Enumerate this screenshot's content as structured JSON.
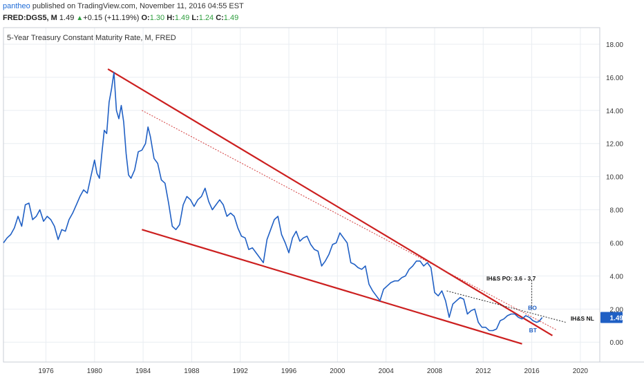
{
  "header": {
    "author": "pantheo",
    "published_text": "published on TradingView.com, November 11, 2016 04:55 EST",
    "symbol": "FRED:DGS5, M",
    "last": "1.49",
    "change_arrow": "▲",
    "change": "+0.15 (+11.19%)",
    "open_label": "O:",
    "open": "1.30",
    "high_label": "H:",
    "high": "1.49",
    "low_label": "L:",
    "low": "1.24",
    "close_label": "C:",
    "close": "1.49"
  },
  "colors": {
    "series": "#1f5fc4",
    "trendline": "#cc1f1f",
    "dotted_red": "#d23a3a",
    "dotted_black": "#222222",
    "price_tag": "#1f5fc4",
    "grid": "#e9edf2"
  },
  "chart_data": {
    "type": "line",
    "title": "5-Year Treasury Constant Maturity Rate, M, FRED",
    "x_ticks": [
      "1976",
      "1980",
      "1984",
      "1988",
      "1992",
      "1996",
      "2000",
      "2004",
      "2008",
      "2012",
      "2016",
      "2020"
    ],
    "y_ticks": [
      "0.00",
      "2.00",
      "4.00",
      "6.00",
      "8.00",
      "10.00",
      "12.00",
      "14.00",
      "16.00",
      "18.00"
    ],
    "xlim": [
      1972.5,
      2021.6
    ],
    "ylim": [
      -1.2,
      19.0
    ],
    "grid": true,
    "last_value_label": "1.49",
    "series": [
      {
        "x": [
          1972.5,
          1972.8,
          1973.1,
          1973.4,
          1973.7,
          1974.0,
          1974.3,
          1974.6,
          1974.9,
          1975.2,
          1975.5,
          1975.8,
          1976.1,
          1976.4,
          1976.7,
          1977.0,
          1977.3,
          1977.6,
          1977.9,
          1978.2,
          1978.5,
          1978.8,
          1979.1,
          1979.4,
          1979.7,
          1980.0,
          1980.2,
          1980.4,
          1980.6,
          1980.8,
          1981.0,
          1981.2,
          1981.4,
          1981.6,
          1981.8,
          1982.0,
          1982.2,
          1982.4,
          1982.6,
          1982.8,
          1983.0,
          1983.3,
          1983.6,
          1983.9,
          1984.2,
          1984.4,
          1984.6,
          1984.9,
          1985.2,
          1985.5,
          1985.8,
          1986.1,
          1986.4,
          1986.7,
          1987.0,
          1987.3,
          1987.6,
          1987.9,
          1988.2,
          1988.5,
          1988.8,
          1989.1,
          1989.4,
          1989.7,
          1990.0,
          1990.3,
          1990.6,
          1990.9,
          1991.2,
          1991.5,
          1991.8,
          1992.1,
          1992.4,
          1992.7,
          1993.0,
          1993.3,
          1993.6,
          1993.9,
          1994.2,
          1994.5,
          1994.8,
          1995.1,
          1995.4,
          1995.7,
          1996.0,
          1996.3,
          1996.6,
          1996.9,
          1997.2,
          1997.5,
          1997.8,
          1998.1,
          1998.4,
          1998.7,
          1999.0,
          1999.3,
          1999.6,
          1999.9,
          2000.2,
          2000.5,
          2000.8,
          2001.1,
          2001.4,
          2001.7,
          2002.0,
          2002.3,
          2002.6,
          2002.9,
          2003.2,
          2003.5,
          2003.8,
          2004.1,
          2004.4,
          2004.7,
          2005.0,
          2005.3,
          2005.6,
          2005.9,
          2006.2,
          2006.5,
          2006.8,
          2007.1,
          2007.4,
          2007.7,
          2008.0,
          2008.3,
          2008.6,
          2008.9,
          2009.2,
          2009.5,
          2009.8,
          2010.1,
          2010.4,
          2010.7,
          2011.0,
          2011.3,
          2011.6,
          2011.9,
          2012.2,
          2012.5,
          2012.8,
          2013.1,
          2013.4,
          2013.7,
          2014.0,
          2014.3,
          2014.6,
          2014.9,
          2015.2,
          2015.5,
          2015.8,
          2016.1,
          2016.4,
          2016.6,
          2016.86
        ],
        "values": [
          6.0,
          6.3,
          6.5,
          6.9,
          7.6,
          7.0,
          8.3,
          8.4,
          7.4,
          7.6,
          8.0,
          7.3,
          7.6,
          7.4,
          7.0,
          6.2,
          6.8,
          6.7,
          7.4,
          7.8,
          8.3,
          8.8,
          9.2,
          9.0,
          10.0,
          11.0,
          10.2,
          9.9,
          11.4,
          12.8,
          12.6,
          14.5,
          15.3,
          16.3,
          14.0,
          13.5,
          14.3,
          13.3,
          11.4,
          10.1,
          9.9,
          10.4,
          11.5,
          11.6,
          12.0,
          13.0,
          12.4,
          11.1,
          10.8,
          9.8,
          9.6,
          8.4,
          7.0,
          6.8,
          7.1,
          8.3,
          8.8,
          8.6,
          8.2,
          8.6,
          8.8,
          9.3,
          8.5,
          8.0,
          8.3,
          8.6,
          8.3,
          7.6,
          7.8,
          7.6,
          6.9,
          6.4,
          6.3,
          5.6,
          5.7,
          5.4,
          5.1,
          4.8,
          6.2,
          6.8,
          7.4,
          7.6,
          6.5,
          6.0,
          5.4,
          6.3,
          6.7,
          6.1,
          6.3,
          6.4,
          5.9,
          5.6,
          5.5,
          4.6,
          4.9,
          5.3,
          5.9,
          6.0,
          6.6,
          6.3,
          6.0,
          4.8,
          4.7,
          4.5,
          4.4,
          4.6,
          3.5,
          3.1,
          2.8,
          2.5,
          3.2,
          3.4,
          3.6,
          3.7,
          3.7,
          3.9,
          4.0,
          4.4,
          4.6,
          4.9,
          4.9,
          4.6,
          4.8,
          4.5,
          3.0,
          2.8,
          3.1,
          2.5,
          1.5,
          2.3,
          2.5,
          2.7,
          2.6,
          1.7,
          1.9,
          2.0,
          1.2,
          0.9,
          0.9,
          0.7,
          0.7,
          0.8,
          1.3,
          1.4,
          1.6,
          1.7,
          1.7,
          1.5,
          1.4,
          1.6,
          1.5,
          1.3,
          1.2,
          1.25,
          1.49
        ]
      }
    ],
    "annotations": [
      {
        "text": "IH&S PO: 3.6 - 3.7",
        "x": 2014.3,
        "y": 3.72
      },
      {
        "text": "IH&S NL",
        "x": 2019.2,
        "y": 1.3
      },
      {
        "text": "BO",
        "x": 2016.05,
        "y": 1.95
      },
      {
        "text": "BT",
        "x": 2016.1,
        "y": 0.6
      }
    ],
    "trendlines": [
      {
        "style": "solid-red",
        "from": [
          1981.1,
          16.5
        ],
        "to": [
          2017.7,
          0.4
        ]
      },
      {
        "style": "solid-red",
        "from": [
          1983.9,
          6.8
        ],
        "to": [
          2015.2,
          -0.1
        ]
      },
      {
        "style": "dotted-red",
        "from": [
          1983.9,
          14.0
        ],
        "to": [
          2018.0,
          0.75
        ]
      },
      {
        "style": "dotted-black",
        "from": [
          2009.0,
          3.1
        ],
        "to": [
          2018.8,
          1.2
        ]
      },
      {
        "style": "dotted-black",
        "from": [
          2016.0,
          3.75
        ],
        "to": [
          2016.0,
          1.9
        ]
      }
    ]
  }
}
